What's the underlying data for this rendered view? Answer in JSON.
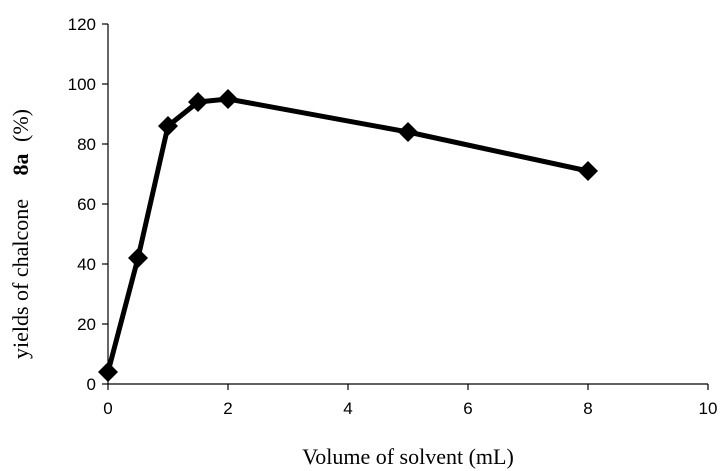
{
  "chart_data": {
    "type": "line",
    "title": "",
    "xlabel": "Volume of solvent (mL)",
    "ylabel": {
      "prefix": "yields of chalcone",
      "bold": "8a",
      "suffix": "(%)"
    },
    "xlim": [
      0,
      10
    ],
    "ylim": [
      0,
      120
    ],
    "x_ticks": [
      0,
      2,
      4,
      6,
      8,
      10
    ],
    "y_ticks": [
      0,
      20,
      40,
      60,
      80,
      100,
      120
    ],
    "grid": false,
    "legend": "none",
    "series": [
      {
        "color": "#000000",
        "marker": "diamond",
        "points": [
          {
            "x": 0,
            "y": 4
          },
          {
            "x": 0.5,
            "y": 42
          },
          {
            "x": 1,
            "y": 86
          },
          {
            "x": 1.5,
            "y": 94
          },
          {
            "x": 2,
            "y": 95
          },
          {
            "x": 5,
            "y": 84
          },
          {
            "x": 8,
            "y": 71
          }
        ]
      }
    ]
  }
}
